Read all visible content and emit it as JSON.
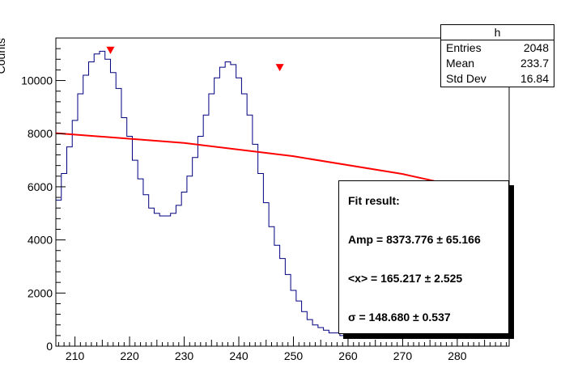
{
  "chart_data": {
    "type": "histogram",
    "title": "",
    "xlabel": "",
    "ylabel": "Counts",
    "xlim": [
      206.5,
      289.5
    ],
    "ylim": [
      0,
      11600
    ],
    "xticks": [
      210,
      220,
      230,
      240,
      250,
      260,
      270,
      280
    ],
    "yticks": [
      0,
      2000,
      4000,
      6000,
      8000,
      10000
    ],
    "bin_width": 1,
    "bin_start": 206.5,
    "values": [
      5500,
      6500,
      7500,
      8500,
      9500,
      10200,
      10700,
      11000,
      11100,
      10800,
      10300,
      9700,
      8600,
      7900,
      7000,
      6300,
      5700,
      5200,
      5000,
      4900,
      4900,
      5000,
      5300,
      5800,
      6400,
      7100,
      7900,
      8700,
      9500,
      10100,
      10500,
      10700,
      10600,
      10100,
      9500,
      8700,
      7600,
      6500,
      5400,
      4500,
      3800,
      3300,
      2700,
      2100,
      1700,
      1300,
      1000,
      800,
      700,
      600,
      500,
      500,
      400,
      400,
      400,
      400,
      400,
      400,
      400,
      400,
      400,
      400,
      400,
      400,
      400,
      400,
      400,
      400,
      400,
      400,
      400,
      400,
      400,
      400,
      400,
      400,
      400,
      400,
      400,
      400,
      400,
      400,
      400
    ],
    "peaks": [
      {
        "x": 216.5,
        "y": 11150
      },
      {
        "x": 247.5,
        "y": 10500
      }
    ],
    "fit_line": {
      "x": [
        206.5,
        230,
        250,
        270,
        289.5
      ],
      "y": [
        8020,
        7650,
        7150,
        6480,
        5600
      ]
    },
    "colors": {
      "histogram": "#000080",
      "fit": "#ff0000",
      "markers": "#ff0000"
    },
    "stats": {
      "title": "h",
      "rows": [
        {
          "label": "Entries",
          "value": "2048"
        },
        {
          "label": "Mean",
          "value": "233.7"
        },
        {
          "label": "Std Dev",
          "value": "16.84"
        }
      ]
    },
    "fit_result": {
      "heading": "Fit result:",
      "amp": "Amp = 8373.776  ± 65.166",
      "mean": "<x> = 165.217  ± 2.525",
      "sigma": "σ = 148.680  ± 0.537"
    }
  }
}
